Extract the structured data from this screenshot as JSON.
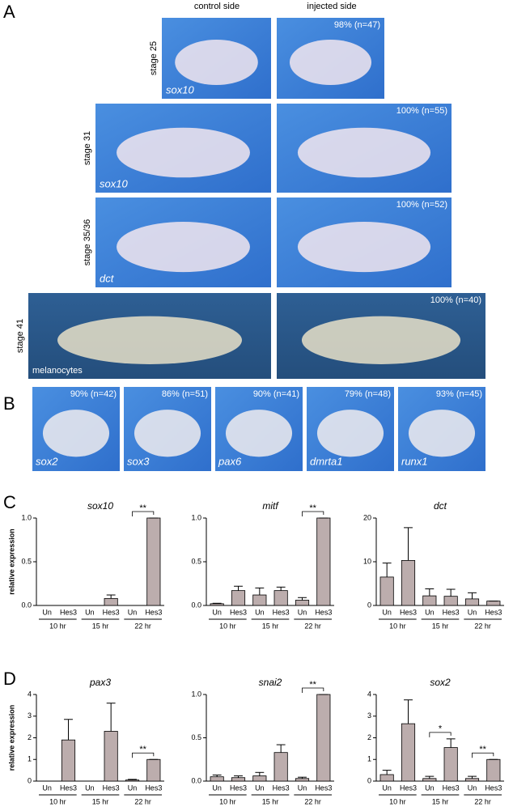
{
  "panel_a": {
    "label": "A",
    "columns": [
      "control side",
      "injected side"
    ],
    "rows": [
      {
        "stage": "stage 25",
        "marker": "sox10",
        "score": "98% (n=47)"
      },
      {
        "stage": "stage 31",
        "marker": "sox10",
        "score": "100% (n=55)"
      },
      {
        "stage": "stage 35/36",
        "marker": "dct",
        "score": "100% (n=52)"
      },
      {
        "stage": "stage 41",
        "marker": "melanocytes",
        "score": "100% (n=40)"
      }
    ]
  },
  "panel_b": {
    "label": "B",
    "images": [
      {
        "marker": "sox2",
        "score": "90% (n=42)"
      },
      {
        "marker": "sox3",
        "score": "86% (n=51)"
      },
      {
        "marker": "pax6",
        "score": "90% (n=41)"
      },
      {
        "marker": "dmrta1",
        "score": "79% (n=48)"
      },
      {
        "marker": "runx1",
        "score": "93% (n=45)"
      }
    ]
  },
  "panel_c": {
    "label": "C"
  },
  "panel_d": {
    "label": "D"
  },
  "chart_data": [
    {
      "type": "bar",
      "title": "sox10",
      "ylabel": "relative expression",
      "color": "#bcadad",
      "categories": [
        "Un",
        "Hes3",
        "Un",
        "Hes3",
        "Un",
        "Hes3"
      ],
      "groups": [
        "10 hr",
        "15 hr",
        "22 hr"
      ],
      "values": [
        0,
        0,
        0,
        0.08,
        0,
        1.0
      ],
      "errors": [
        0,
        0,
        0,
        0.04,
        0,
        0
      ],
      "significance": [
        null,
        null,
        "**"
      ],
      "ylim": [
        0,
        1
      ],
      "yticks": [
        {
          "value": 0,
          "label": "0.0"
        },
        0.5,
        {
          "value": 1,
          "label": "1.0"
        }
      ]
    },
    {
      "type": "bar",
      "title": "mitf",
      "color": "#bcadad",
      "categories": [
        "Un",
        "Hes3",
        "Un",
        "Hes3",
        "Un",
        "Hes3"
      ],
      "groups": [
        "10 hr",
        "15 hr",
        "22 hr"
      ],
      "values": [
        0.02,
        0.17,
        0.12,
        0.17,
        0.06,
        1.0
      ],
      "errors": [
        0.005,
        0.05,
        0.08,
        0.04,
        0.03,
        0
      ],
      "significance": [
        null,
        null,
        "**"
      ],
      "ylim": [
        0,
        1
      ],
      "yticks": [
        {
          "value": 0,
          "label": "0.0"
        },
        0.5,
        {
          "value": 1,
          "label": "1.0"
        }
      ]
    },
    {
      "type": "bar",
      "title": "dct",
      "color": "#bcadad",
      "categories": [
        "Un",
        "Hes3",
        "Un",
        "Hes3",
        "Un",
        "Hes3"
      ],
      "groups": [
        "10 hr",
        "15 hr",
        "22 hr"
      ],
      "values": [
        6.5,
        10.3,
        2.2,
        2.1,
        1.5,
        1.0
      ],
      "errors": [
        3.2,
        7.5,
        1.6,
        1.6,
        1.4,
        0
      ],
      "significance": [
        null,
        null,
        null
      ],
      "ylim": [
        0,
        20
      ],
      "yticks": [
        0,
        10,
        20
      ]
    },
    {
      "type": "bar",
      "title": "pax3",
      "ylabel": "relative expression",
      "color": "#bcadad",
      "categories": [
        "Un",
        "Hes3",
        "Un",
        "Hes3",
        "Un",
        "Hes3"
      ],
      "groups": [
        "10 hr",
        "15 hr",
        "22 hr"
      ],
      "values": [
        0,
        1.9,
        0,
        2.3,
        0.05,
        1.0
      ],
      "errors": [
        0,
        0.95,
        0,
        1.3,
        0.03,
        0
      ],
      "significance": [
        null,
        null,
        "**"
      ],
      "ylim": [
        0,
        4
      ],
      "yticks": [
        0,
        1,
        2,
        3,
        4
      ]
    },
    {
      "type": "bar",
      "title": "snai2",
      "color": "#bcadad",
      "categories": [
        "Un",
        "Hes3",
        "Un",
        "Hes3",
        "Un",
        "Hes3"
      ],
      "groups": [
        "10 hr",
        "15 hr",
        "22 hr"
      ],
      "values": [
        0.05,
        0.04,
        0.06,
        0.33,
        0.03,
        1.0
      ],
      "errors": [
        0.02,
        0.02,
        0.04,
        0.09,
        0.015,
        0
      ],
      "significance": [
        null,
        null,
        "**"
      ],
      "ylim": [
        0,
        1
      ],
      "yticks": [
        {
          "value": 0,
          "label": "0.0"
        },
        0.5,
        {
          "value": 1,
          "label": "1.0"
        }
      ]
    },
    {
      "type": "bar",
      "title": "sox2",
      "color": "#bcadad",
      "categories": [
        "Un",
        "Hes3",
        "Un",
        "Hes3",
        "Un",
        "Hes3"
      ],
      "groups": [
        "10 hr",
        "15 hr",
        "22 hr"
      ],
      "values": [
        0.3,
        2.65,
        0.12,
        1.55,
        0.12,
        1.0
      ],
      "errors": [
        0.2,
        1.1,
        0.1,
        0.4,
        0.1,
        0
      ],
      "significance": [
        null,
        "*",
        "**"
      ],
      "ylim": [
        0,
        4
      ],
      "yticks": [
        0,
        1,
        2,
        3,
        4
      ]
    }
  ]
}
